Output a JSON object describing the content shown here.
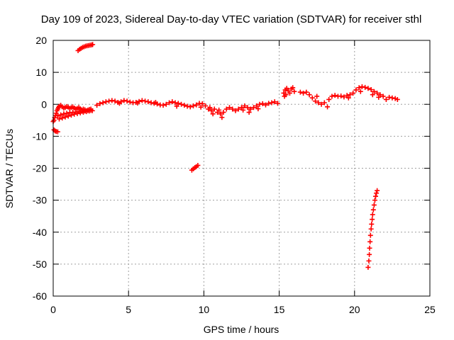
{
  "chart_data": {
    "type": "scatter",
    "title": "Day 109 of 2023, Sidereal Day-to-day VTEC variation (SDTVAR) for receiver sthl",
    "xlabel": "GPS time / hours",
    "ylabel": "SDTVAR / TECUs",
    "xlim": [
      0,
      25
    ],
    "ylim": [
      -60,
      20
    ],
    "xticks": [
      "0",
      "5",
      "10",
      "15",
      "20",
      "25"
    ],
    "yticks": [
      "20",
      "10",
      "0",
      "-10",
      "-20",
      "-30",
      "-40",
      "-50",
      "-60"
    ],
    "grid": true,
    "marker": "+",
    "color": "#ff0000",
    "series": [
      {
        "name": "SDTVAR",
        "points": [
          [
            0.05,
            -5.0
          ],
          [
            0.1,
            -4.2
          ],
          [
            0.15,
            -3.5
          ],
          [
            0.2,
            -2.8
          ],
          [
            0.25,
            -2.0
          ],
          [
            0.3,
            -1.5
          ],
          [
            0.35,
            -1.0
          ],
          [
            0.4,
            -0.6
          ],
          [
            0.5,
            -0.3
          ],
          [
            0.6,
            -0.8
          ],
          [
            0.7,
            -1.2
          ],
          [
            0.8,
            -1.0
          ],
          [
            0.9,
            -0.7
          ],
          [
            1.0,
            -0.9
          ],
          [
            1.1,
            -1.3
          ],
          [
            1.2,
            -1.0
          ],
          [
            1.3,
            -0.8
          ],
          [
            1.4,
            -1.2
          ],
          [
            1.5,
            -1.5
          ],
          [
            1.6,
            -1.3
          ],
          [
            1.7,
            -1.0
          ],
          [
            1.8,
            -1.4
          ],
          [
            1.9,
            -1.8
          ],
          [
            2.0,
            -1.5
          ],
          [
            2.1,
            -1.7
          ],
          [
            2.2,
            -2.0
          ],
          [
            2.3,
            -1.8
          ],
          [
            2.4,
            -1.6
          ],
          [
            2.5,
            -1.5
          ],
          [
            0.3,
            -3.6
          ],
          [
            0.5,
            -3.3
          ],
          [
            0.7,
            -3.0
          ],
          [
            0.9,
            -2.8
          ],
          [
            1.1,
            -2.6
          ],
          [
            1.3,
            -2.5
          ],
          [
            1.5,
            -2.4
          ],
          [
            1.7,
            -2.3
          ],
          [
            1.9,
            -2.2
          ],
          [
            2.1,
            -2.1
          ],
          [
            2.3,
            -2.0
          ],
          [
            2.5,
            -1.9
          ],
          [
            0.4,
            -4.6
          ],
          [
            0.6,
            -4.3
          ],
          [
            0.8,
            -4.0
          ],
          [
            1.0,
            -3.7
          ],
          [
            1.2,
            -3.4
          ],
          [
            1.4,
            -3.1
          ],
          [
            1.6,
            -2.9
          ],
          [
            1.8,
            -2.7
          ],
          [
            2.0,
            -2.5
          ],
          [
            2.2,
            -2.3
          ],
          [
            2.4,
            -2.1
          ],
          [
            2.6,
            -2.0
          ],
          [
            0.0,
            -5.4
          ],
          [
            0.05,
            -8.0
          ],
          [
            0.12,
            -8.3
          ],
          [
            0.2,
            -8.5
          ],
          [
            0.3,
            -8.6
          ],
          [
            1.65,
            16.8
          ],
          [
            1.75,
            17.2
          ],
          [
            1.85,
            17.5
          ],
          [
            1.95,
            17.8
          ],
          [
            2.05,
            18.0
          ],
          [
            2.15,
            18.2
          ],
          [
            2.25,
            18.3
          ],
          [
            2.35,
            18.4
          ],
          [
            2.45,
            18.5
          ],
          [
            2.55,
            18.6
          ],
          [
            2.62,
            18.7
          ],
          [
            2.9,
            -0.3
          ],
          [
            3.1,
            0.2
          ],
          [
            3.3,
            0.5
          ],
          [
            3.5,
            0.8
          ],
          [
            3.7,
            1.0
          ],
          [
            3.9,
            1.2
          ],
          [
            4.1,
            1.0
          ],
          [
            4.3,
            0.6
          ],
          [
            4.5,
            0.8
          ],
          [
            4.7,
            1.2
          ],
          [
            4.9,
            1.0
          ],
          [
            5.1,
            0.7
          ],
          [
            5.3,
            0.5
          ],
          [
            5.5,
            0.6
          ],
          [
            5.7,
            0.9
          ],
          [
            5.9,
            1.2
          ],
          [
            6.1,
            1.0
          ],
          [
            6.3,
            0.8
          ],
          [
            6.5,
            0.5
          ],
          [
            6.7,
            0.3
          ],
          [
            6.9,
            0.1
          ],
          [
            7.1,
            -0.2
          ],
          [
            7.3,
            -0.3
          ],
          [
            7.5,
            0.0
          ],
          [
            7.7,
            0.5
          ],
          [
            7.9,
            0.8
          ],
          [
            8.1,
            0.5
          ],
          [
            8.3,
            0.3
          ],
          [
            8.5,
            0.0
          ],
          [
            8.7,
            -0.3
          ],
          [
            8.9,
            -0.6
          ],
          [
            9.1,
            -0.8
          ],
          [
            9.3,
            -0.5
          ],
          [
            9.5,
            -0.2
          ],
          [
            9.7,
            0.3
          ],
          [
            9.9,
            0.2
          ],
          [
            10.1,
            -0.5
          ],
          [
            10.3,
            -1.5
          ],
          [
            10.5,
            -2.0
          ],
          [
            10.7,
            -1.5
          ],
          [
            10.9,
            -2.5
          ],
          [
            11.1,
            -3.0
          ],
          [
            11.3,
            -2.5
          ],
          [
            11.5,
            -1.5
          ],
          [
            11.7,
            -1.0
          ],
          [
            11.9,
            -1.5
          ],
          [
            12.1,
            -2.0
          ],
          [
            12.3,
            -1.5
          ],
          [
            12.5,
            -1.0
          ],
          [
            12.7,
            -0.5
          ],
          [
            12.9,
            -1.0
          ],
          [
            13.1,
            -1.5
          ],
          [
            13.3,
            -1.0
          ],
          [
            13.5,
            -0.5
          ],
          [
            13.7,
            0.0
          ],
          [
            13.9,
            0.2
          ],
          [
            14.1,
            -0.2
          ],
          [
            14.3,
            0.3
          ],
          [
            14.5,
            0.5
          ],
          [
            14.7,
            0.8
          ],
          [
            14.9,
            0.3
          ],
          [
            4.4,
            0.3
          ],
          [
            5.6,
            0.4
          ],
          [
            6.8,
            0.6
          ],
          [
            8.2,
            -0.6
          ],
          [
            9.8,
            -0.9
          ],
          [
            10.4,
            -1.0
          ],
          [
            11.0,
            -1.8
          ],
          [
            12.6,
            -1.8
          ],
          [
            13.6,
            -1.4
          ],
          [
            9.2,
            -20.6
          ],
          [
            9.3,
            -20.2
          ],
          [
            9.4,
            -19.8
          ],
          [
            9.5,
            -19.5
          ],
          [
            9.6,
            -19.1
          ],
          [
            11.2,
            -4.1
          ],
          [
            10.6,
            -3.0
          ],
          [
            13.0,
            -2.5
          ],
          [
            15.3,
            3.5
          ],
          [
            15.4,
            4.5
          ],
          [
            15.5,
            5.0
          ],
          [
            15.6,
            4.2
          ],
          [
            15.7,
            3.5
          ],
          [
            15.8,
            4.8
          ],
          [
            15.9,
            5.2
          ],
          [
            16.0,
            4.0
          ],
          [
            15.35,
            2.5
          ],
          [
            15.45,
            3.0
          ],
          [
            16.4,
            3.8
          ],
          [
            16.6,
            3.5
          ],
          [
            16.8,
            3.8
          ],
          [
            17.0,
            3.0
          ],
          [
            17.2,
            2.0
          ],
          [
            17.4,
            1.0
          ],
          [
            17.6,
            0.5
          ],
          [
            17.8,
            0.0
          ],
          [
            18.0,
            0.5
          ],
          [
            18.2,
            -0.8
          ],
          [
            18.3,
            1.5
          ],
          [
            18.5,
            2.5
          ],
          [
            18.7,
            2.8
          ],
          [
            18.9,
            2.5
          ],
          [
            19.1,
            2.6
          ],
          [
            19.3,
            2.3
          ],
          [
            19.5,
            2.8
          ],
          [
            19.7,
            3.0
          ],
          [
            19.9,
            3.5
          ],
          [
            20.1,
            4.5
          ],
          [
            20.3,
            5.2
          ],
          [
            20.5,
            5.5
          ],
          [
            20.7,
            5.3
          ],
          [
            20.9,
            5.0
          ],
          [
            21.1,
            4.6
          ],
          [
            21.3,
            4.0
          ],
          [
            21.5,
            3.5
          ],
          [
            21.7,
            3.0
          ],
          [
            21.9,
            2.5
          ],
          [
            22.1,
            1.5
          ],
          [
            22.3,
            2.2
          ],
          [
            22.5,
            2.0
          ],
          [
            22.7,
            1.8
          ],
          [
            22.85,
            1.5
          ],
          [
            21.2,
            3.0
          ],
          [
            21.6,
            2.2
          ],
          [
            20.4,
            4.0
          ],
          [
            19.6,
            2.0
          ],
          [
            17.5,
            2.5
          ],
          [
            20.9,
            -51.0
          ],
          [
            20.95,
            -49.0
          ],
          [
            20.98,
            -47.0
          ],
          [
            21.0,
            -45.0
          ],
          [
            21.03,
            -43.0
          ],
          [
            21.06,
            -41.0
          ],
          [
            21.1,
            -39.0
          ],
          [
            21.13,
            -37.5
          ],
          [
            21.17,
            -36.0
          ],
          [
            21.2,
            -34.5
          ],
          [
            21.25,
            -33.0
          ],
          [
            21.3,
            -31.5
          ],
          [
            21.35,
            -30.0
          ],
          [
            21.4,
            -28.8
          ],
          [
            21.45,
            -27.8
          ],
          [
            21.5,
            -27.0
          ]
        ]
      }
    ]
  }
}
